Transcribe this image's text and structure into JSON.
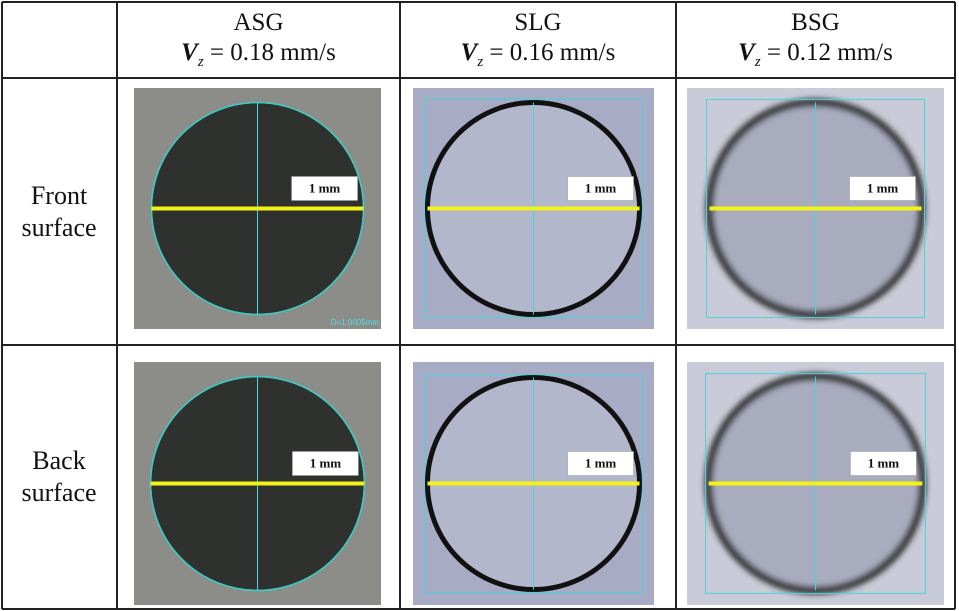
{
  "header": {
    "columns": [
      {
        "name": "ASG",
        "symbol": "V",
        "subscript": "z",
        "value": "= 0.18 mm/s"
      },
      {
        "name": "SLG",
        "symbol": "V",
        "subscript": "z",
        "value": "= 0.16 mm/s"
      },
      {
        "name": "BSG",
        "symbol": "V",
        "subscript": "z",
        "value": "= 0.12 mm/s"
      }
    ]
  },
  "rows": [
    {
      "label": "Front surface",
      "cells": [
        {
          "scale_label": "1 mm",
          "measurement": "D=1.0005mm"
        },
        {
          "scale_label": "1 mm"
        },
        {
          "scale_label": "1 mm"
        }
      ]
    },
    {
      "label": "Back surface",
      "cells": [
        {
          "scale_label": "1 mm"
        },
        {
          "scale_label": "1 mm"
        },
        {
          "scale_label": "1 mm"
        }
      ]
    }
  ]
}
